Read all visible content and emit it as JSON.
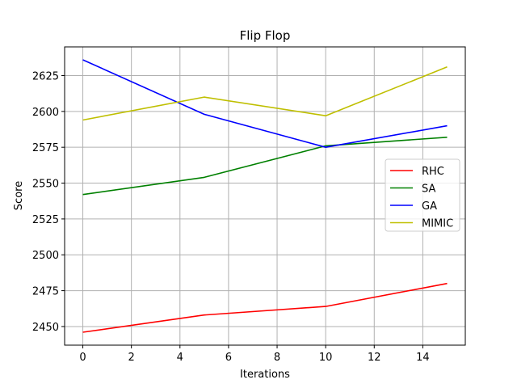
{
  "chart_data": {
    "type": "line",
    "title": "Flip Flop",
    "xlabel": "Iterations",
    "ylabel": "Score",
    "xlim": [
      -0.75,
      15.75
    ],
    "ylim": [
      2437,
      2645
    ],
    "x_ticks": [
      0,
      2,
      4,
      6,
      8,
      10,
      12,
      14
    ],
    "y_ticks": [
      2450,
      2475,
      2500,
      2525,
      2550,
      2575,
      2600,
      2625
    ],
    "grid": true,
    "legend_position": "center-right",
    "x": [
      0,
      5,
      10,
      15
    ],
    "series": [
      {
        "name": "RHC",
        "color": "#ff0000",
        "values": [
          2446,
          2458,
          2464,
          2480
        ]
      },
      {
        "name": "SA",
        "color": "#008000",
        "values": [
          2542,
          2554,
          2576,
          2582
        ]
      },
      {
        "name": "GA",
        "color": "#0000ff",
        "values": [
          2636,
          2598,
          2575,
          2590
        ]
      },
      {
        "name": "MIMIC",
        "color": "#bfbf00",
        "values": [
          2594,
          2610,
          2597,
          2631
        ]
      }
    ]
  }
}
